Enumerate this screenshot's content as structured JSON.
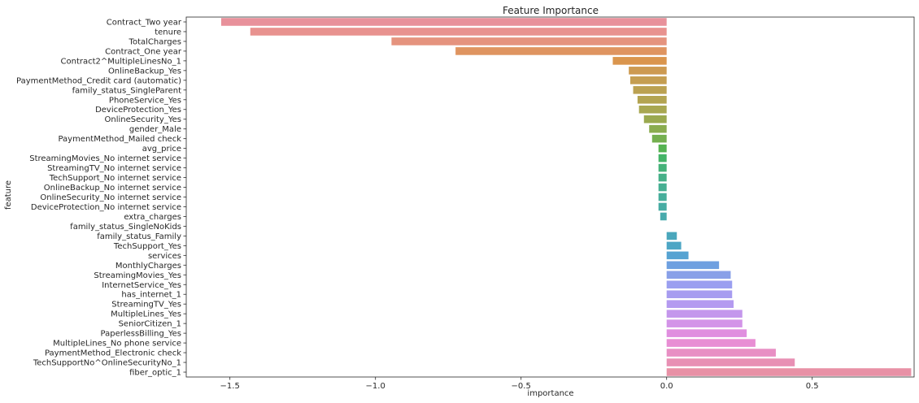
{
  "chart_data": {
    "type": "bar",
    "orientation": "horizontal",
    "title": "Feature Importance",
    "xlabel": "importance",
    "ylabel": "feature",
    "xlim": [
      -1.65,
      0.85
    ],
    "xticks": [
      -1.5,
      -1.0,
      -0.5,
      0.0,
      0.5
    ],
    "xtick_labels": [
      "−1.5",
      "−1.0",
      "−0.5",
      "0.0",
      "0.5"
    ],
    "grid": false,
    "categories": [
      "Contract_Two year",
      "tenure",
      "TotalCharges",
      "Contract_One year",
      "Contract2^MultipleLinesNo_1",
      "OnlineBackup_Yes",
      "PaymentMethod_Credit card (automatic)",
      "family_status_SingleParent",
      "PhoneService_Yes",
      "DeviceProtection_Yes",
      "OnlineSecurity_Yes",
      "gender_Male",
      "PaymentMethod_Mailed check",
      "avg_price",
      "StreamingMovies_No internet service",
      "StreamingTV_No internet service",
      "TechSupport_No internet service",
      "OnlineBackup_No internet service",
      "OnlineSecurity_No internet service",
      "DeviceProtection_No internet service",
      "extra_charges",
      "family_status_SingleNoKids",
      "family_status_Family",
      "TechSupport_Yes",
      "services",
      "MonthlyCharges",
      "StreamingMovies_Yes",
      "InternetService_Yes",
      "has_internet_1",
      "StreamingTV_Yes",
      "MultipleLines_Yes",
      "SeniorCitizen_1",
      "PaperlessBilling_Yes",
      "MultipleLines_No phone service",
      "PaymentMethod_Electronic check",
      "TechSupportNo^OnlineSecurityNo_1",
      "fiber_optic_1"
    ],
    "values": [
      -1.53,
      -1.43,
      -0.945,
      -0.725,
      -0.185,
      -0.13,
      -0.125,
      -0.115,
      -0.1,
      -0.095,
      -0.078,
      -0.06,
      -0.05,
      -0.028,
      -0.028,
      -0.028,
      -0.028,
      -0.028,
      -0.028,
      -0.028,
      -0.022,
      0.0,
      0.035,
      0.05,
      0.075,
      0.18,
      0.22,
      0.225,
      0.225,
      0.23,
      0.26,
      0.26,
      0.275,
      0.305,
      0.375,
      0.44,
      0.84
    ],
    "colors": [
      "#e8919b",
      "#e8928f",
      "#e5937e",
      "#df9460",
      "#da954d",
      "#cd9a51",
      "#c59e51",
      "#bba151",
      "#b3a451",
      "#a8a751",
      "#9aa94f",
      "#8aac4f",
      "#74af4f",
      "#55b351",
      "#44b467",
      "#45b279",
      "#46b088",
      "#46af92",
      "#47ae9b",
      "#47aca3",
      "#48aaac",
      "#49a9b4",
      "#4aa7bc",
      "#4da6c5",
      "#56a3d2",
      "#6ea0e0",
      "#89a0e8",
      "#9b9ff0",
      "#a79cf0",
      "#b49af0",
      "#c497ec",
      "#d394e8",
      "#e08fdf",
      "#e88ed4",
      "#e88fc4",
      "#e890b4",
      "#e891a6"
    ]
  }
}
